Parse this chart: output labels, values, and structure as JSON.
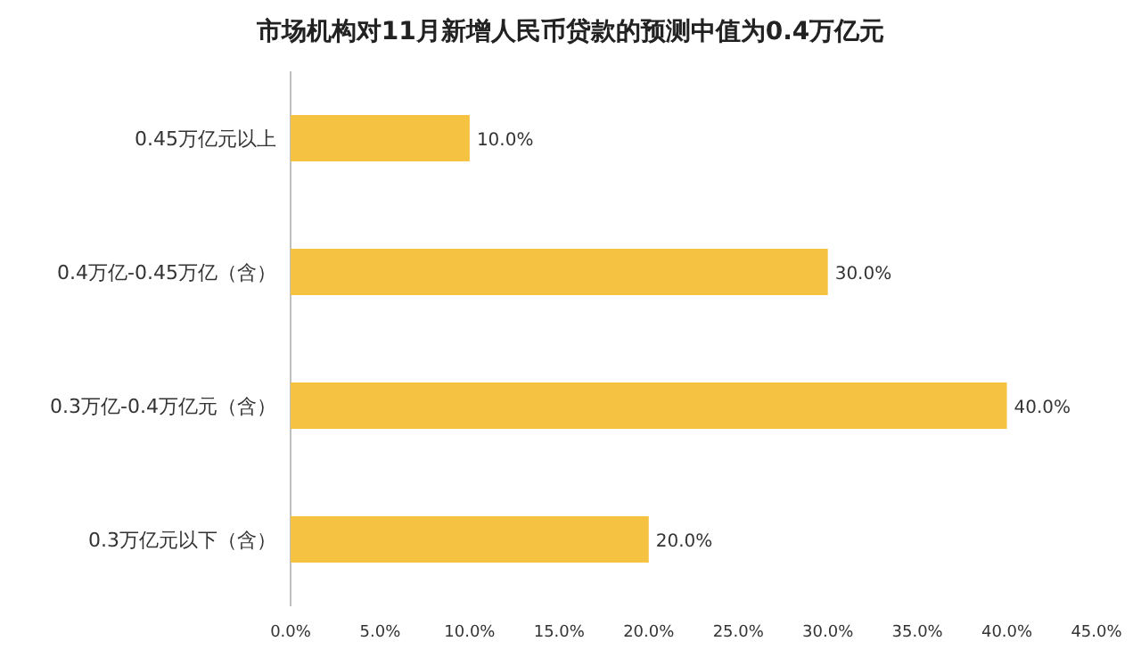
{
  "chart_data": {
    "type": "bar",
    "orientation": "horizontal",
    "title": "市场机构对11月新增人民币贷款的预测中值为0.4万亿元",
    "categories": [
      "0.45万亿元以上",
      "0.4万亿-0.45万亿（含）",
      "0.3万亿-0.4万亿元（含）",
      "0.3万亿元以下（含）"
    ],
    "values": [
      10,
      30,
      40,
      20
    ],
    "value_labels": [
      "10.0%",
      "30.0%",
      "40.0%",
      "20.0%"
    ],
    "color": "#f5c242",
    "xlim": [
      0,
      45
    ],
    "xticks": [
      {
        "value": 0,
        "label": "0.0%"
      },
      {
        "value": 5,
        "label": "5.0%"
      },
      {
        "value": 10,
        "label": "10.0%"
      },
      {
        "value": 15,
        "label": "15.0%"
      },
      {
        "value": 20,
        "label": "20.0%"
      },
      {
        "value": 25,
        "label": "25.0%"
      },
      {
        "value": 30,
        "label": "30.0%"
      },
      {
        "value": 35,
        "label": "35.0%"
      },
      {
        "value": 40,
        "label": "40.0%"
      },
      {
        "value": 45,
        "label": "45.0%"
      }
    ],
    "grid": false
  }
}
